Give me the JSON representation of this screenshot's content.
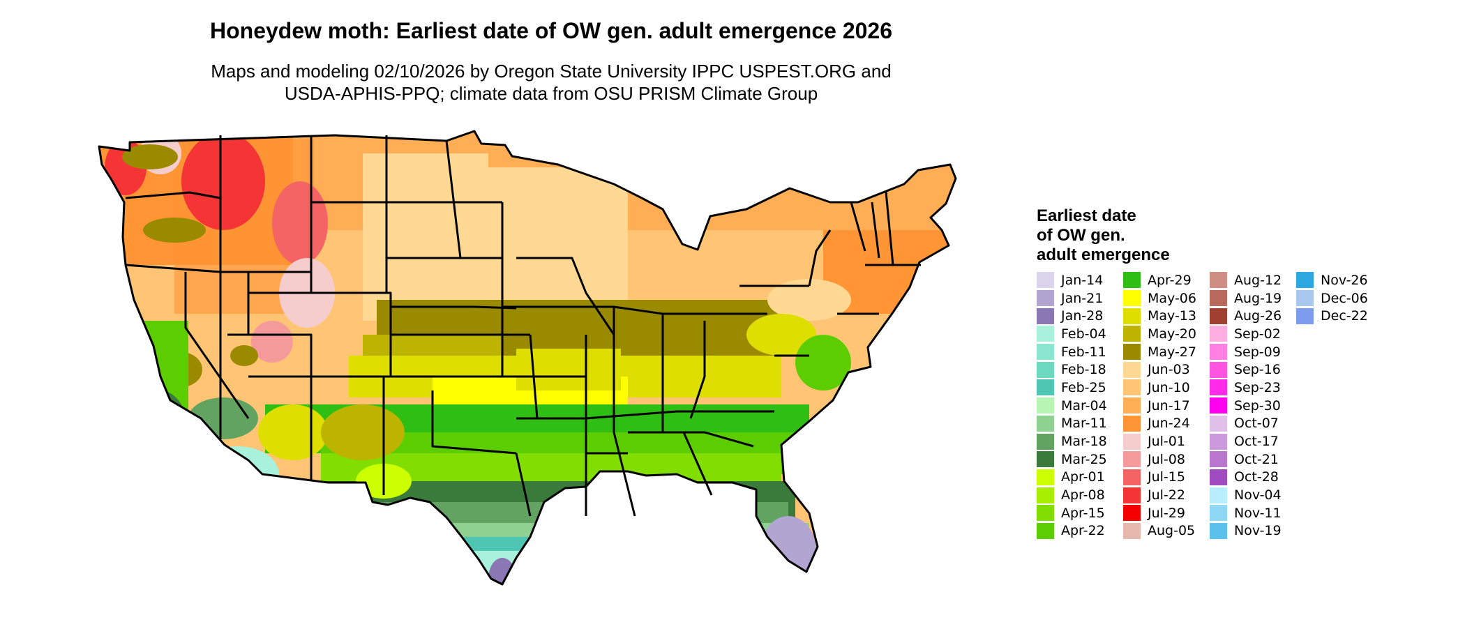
{
  "title": "Honeydew moth: Earliest date of OW gen. adult emergence 2026",
  "subtitle": [
    "Maps and modeling 02/10/2026 by Oregon State University IPPC USPEST.ORG and",
    "USDA-APHIS-PPQ; climate data from OSU PRISM Climate Group"
  ],
  "legend": {
    "title": [
      "Earliest date",
      "of OW gen.",
      "adult emergence"
    ],
    "items": [
      {
        "label": "Jan-14",
        "color": "#DCD3EC"
      },
      {
        "label": "Jan-21",
        "color": "#B3A5D1"
      },
      {
        "label": "Jan-28",
        "color": "#8B77B3"
      },
      {
        "label": "Feb-04",
        "color": "#A8F2DC"
      },
      {
        "label": "Feb-11",
        "color": "#8AE6CF"
      },
      {
        "label": "Feb-18",
        "color": "#6CD8C0"
      },
      {
        "label": "Feb-25",
        "color": "#4FC5B3"
      },
      {
        "label": "Mar-04",
        "color": "#B7F5B5"
      },
      {
        "label": "Mar-11",
        "color": "#8ED190"
      },
      {
        "label": "Mar-18",
        "color": "#62A362"
      },
      {
        "label": "Mar-25",
        "color": "#3A7A3A"
      },
      {
        "label": "Apr-01",
        "color": "#CCFF00"
      },
      {
        "label": "Apr-08",
        "color": "#A8EE00"
      },
      {
        "label": "Apr-15",
        "color": "#82DE00"
      },
      {
        "label": "Apr-22",
        "color": "#5CCE00"
      },
      {
        "label": "Apr-29",
        "color": "#2EBE14"
      },
      {
        "label": "May-06",
        "color": "#FFFF00"
      },
      {
        "label": "May-13",
        "color": "#DEDE00"
      },
      {
        "label": "May-20",
        "color": "#BCB400"
      },
      {
        "label": "May-27",
        "color": "#9A8A00"
      },
      {
        "label": "Jun-03",
        "color": "#FFD993"
      },
      {
        "label": "Jun-10",
        "color": "#FFC474"
      },
      {
        "label": "Jun-17",
        "color": "#FFAE55"
      },
      {
        "label": "Jun-24",
        "color": "#FF9535"
      },
      {
        "label": "Jul-01",
        "color": "#F6CDCD"
      },
      {
        "label": "Jul-08",
        "color": "#F59A9A"
      },
      {
        "label": "Jul-15",
        "color": "#F56464"
      },
      {
        "label": "Jul-22",
        "color": "#F53535"
      },
      {
        "label": "Jul-29",
        "color": "#F50000"
      },
      {
        "label": "Aug-05",
        "color": "#E6B8AE"
      },
      {
        "label": "Aug-12",
        "color": "#CF8E82"
      },
      {
        "label": "Aug-19",
        "color": "#B96A5C"
      },
      {
        "label": "Aug-26",
        "color": "#A04030"
      },
      {
        "label": "Sep-02",
        "color": "#FFAEE2"
      },
      {
        "label": "Sep-09",
        "color": "#FF80E0"
      },
      {
        "label": "Sep-16",
        "color": "#FF55E0"
      },
      {
        "label": "Sep-23",
        "color": "#FF2BE8"
      },
      {
        "label": "Sep-30",
        "color": "#FF00F0"
      },
      {
        "label": "Oct-07",
        "color": "#E0C0E8"
      },
      {
        "label": "Oct-17",
        "color": "#CC99DD"
      },
      {
        "label": "Oct-21",
        "color": "#B876CC"
      },
      {
        "label": "Oct-28",
        "color": "#A04CC0"
      },
      {
        "label": "Nov-04",
        "color": "#B8EEFF"
      },
      {
        "label": "Nov-11",
        "color": "#8ED8F5"
      },
      {
        "label": "Nov-19",
        "color": "#5CC0EC"
      },
      {
        "label": "Nov-26",
        "color": "#2EA8E0"
      },
      {
        "label": "Dec-06",
        "color": "#A8C8EE"
      },
      {
        "label": "Dec-22",
        "color": "#7E9CEE"
      }
    ]
  }
}
